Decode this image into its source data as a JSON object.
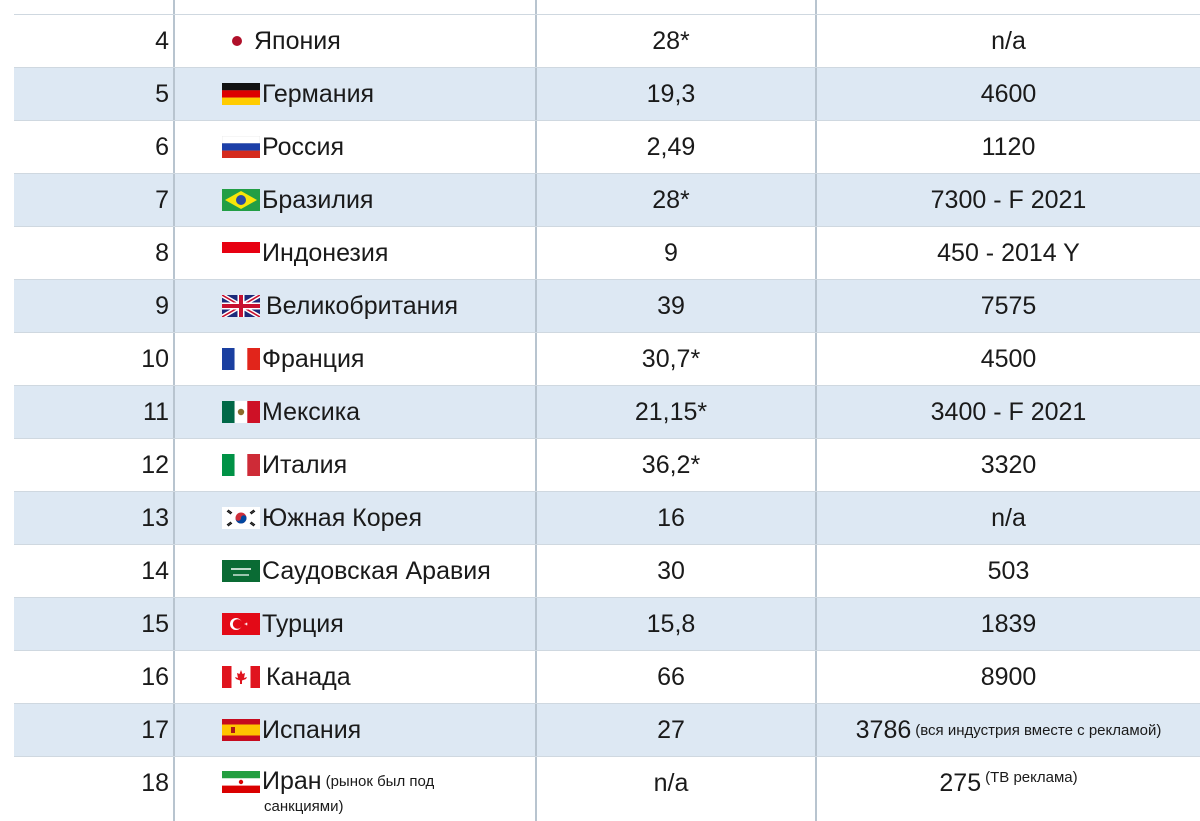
{
  "rows": [
    {
      "rank": "",
      "country": "",
      "v1": "",
      "v2": ""
    },
    {
      "rank": "4",
      "country": "Япония",
      "flag": "jp-flag-icon",
      "v1": "28*",
      "v2": "n/a"
    },
    {
      "rank": "5",
      "country": "Германия",
      "flag": "de-flag-icon",
      "v1": "19,3",
      "v2": "4600"
    },
    {
      "rank": "6",
      "country": "Россия",
      "flag": "ru-flag-icon",
      "v1": "2,49",
      "v2": "1120"
    },
    {
      "rank": "7",
      "country": "Бразилия",
      "flag": "br-flag-icon",
      "v1": "28*",
      "v2": "7300 -  F 2021"
    },
    {
      "rank": "8",
      "country": "Индонезия",
      "flag": "id-flag-icon",
      "v1": "9",
      "v2": "450 - 2014 Y"
    },
    {
      "rank": "9",
      "country": "Великобритания",
      "flag": "gb-flag-icon",
      "v1": "39",
      "v2": "7575"
    },
    {
      "rank": "10",
      "country": "Франция",
      "flag": "fr-flag-icon",
      "v1": "30,7*",
      "v2": "4500"
    },
    {
      "rank": "11",
      "country": "Мексика",
      "flag": "mx-flag-icon",
      "v1": "21,15*",
      "v2": "3400 - F 2021"
    },
    {
      "rank": "12",
      "country": "Италия",
      "flag": "it-flag-icon",
      "v1": "36,2*",
      "v2": "3320"
    },
    {
      "rank": "13",
      "country": "Южная Корея",
      "flag": "kr-flag-icon",
      "v1": "16",
      "v2": "n/a"
    },
    {
      "rank": "14",
      "country": "Саудовская Аравия",
      "flag": "sa-flag-icon",
      "v1": "30",
      "v2": "503"
    },
    {
      "rank": "15",
      "country": "Турция",
      "flag": "tr-flag-icon",
      "v1": "15,8",
      "v2": "1839"
    },
    {
      "rank": "16",
      "country": "Канада",
      "flag": "ca-flag-icon",
      "v1": "66",
      "v2": "8900"
    },
    {
      "rank": "17",
      "country": "Испания",
      "flag": "es-flag-icon",
      "v1": "27",
      "v2": "3786",
      "v2_note": "(вся индустрия вместе с рекламой)"
    },
    {
      "rank": "18",
      "country": "Иран",
      "flag": "ir-flag-icon",
      "country_note": "(рынок был под",
      "country_note2": "санкциями)",
      "v1": "n/a",
      "v2": "275",
      "v2_note": "(ТВ реклама)"
    }
  ],
  "colors": {
    "row_shade": "#dde8f3",
    "grid": "#b8c4cf"
  }
}
